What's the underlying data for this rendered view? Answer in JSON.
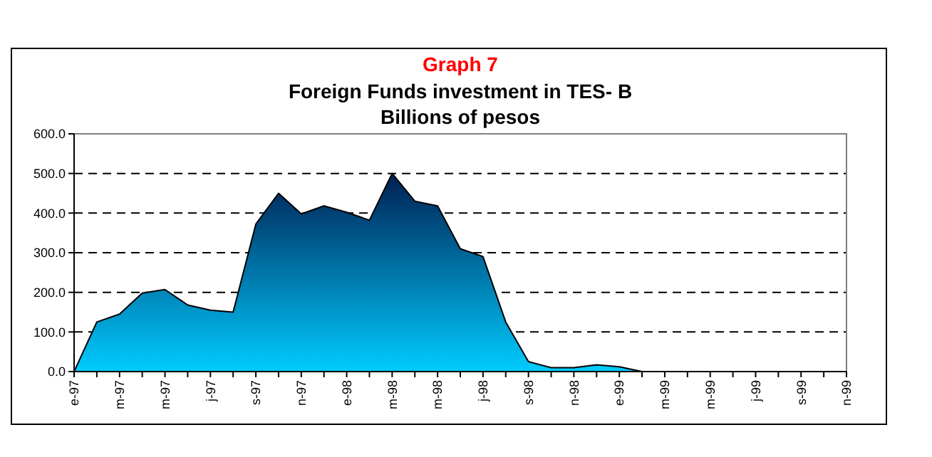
{
  "chart_data": {
    "type": "area",
    "title": "Graph 7",
    "subtitle": "Foreign Funds investment in TES- B",
    "ylabel": "Billions of pesos",
    "categories": [
      "e-97",
      null,
      "m-97",
      null,
      "m-97",
      null,
      "j-97",
      null,
      "s-97",
      null,
      "n-97",
      null,
      "e-98",
      null,
      "m-98",
      null,
      "m-98",
      null,
      "j-98",
      null,
      "s-98",
      null,
      "n-98",
      null,
      "e-99",
      null,
      "m-99",
      null,
      "m-99",
      null,
      "j-99",
      null,
      "s-99",
      null,
      "n-99"
    ],
    "series": [
      {
        "color": "#00ccff",
        "values": [
          0,
          125,
          145,
          198,
          207,
          168,
          155,
          150,
          372,
          450,
          398,
          418,
          402,
          382,
          500,
          430,
          418,
          310,
          290,
          125,
          25,
          10,
          10,
          17,
          12,
          0,
          null,
          null,
          null,
          null,
          null,
          null,
          null,
          null,
          null
        ]
      }
    ],
    "ylim": [
      0,
      600
    ],
    "yticks": [
      {
        "value": 0,
        "label": "0.0"
      },
      {
        "value": 100,
        "label": "100.0"
      },
      {
        "value": 200,
        "label": "200.0"
      },
      {
        "value": 300,
        "label": "300.0"
      },
      {
        "value": 400,
        "label": "400.0"
      },
      {
        "value": 500,
        "label": "500.0"
      },
      {
        "value": 600,
        "label": "600.0"
      }
    ],
    "grid": "y",
    "line_style": "dashed"
  }
}
